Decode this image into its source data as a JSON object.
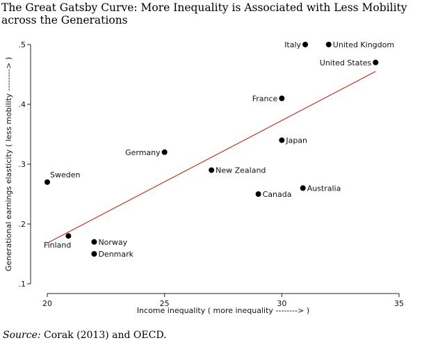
{
  "title": "The Great Gatsby Curve: More Inequality is Associated with Less Mobility across the Generations",
  "source": {
    "prefix": "Source:",
    "text": " Corak (2013) and OECD."
  },
  "chart_data": {
    "type": "scatter",
    "title": "The Great Gatsby Curve: More Inequality is Associated with Less Mobility across the Generations",
    "xlabel": "Income inequality ( more inequality --------> )",
    "ylabel": "Generational earnings elasticity ( less mobility --------> )",
    "xlim": [
      20,
      35
    ],
    "ylim": [
      0.1,
      0.5
    ],
    "xticks": [
      20,
      25,
      30,
      35
    ],
    "yticks": [
      0.1,
      0.2,
      0.3,
      0.4,
      0.5
    ],
    "xtick_labels": [
      "20",
      "25",
      "30",
      "35"
    ],
    "ytick_labels": [
      ".1",
      ".2",
      ".3",
      ".4",
      ".5"
    ],
    "grid": false,
    "points": [
      {
        "label": "Italy",
        "x": 31.0,
        "y": 0.5,
        "label_side": "left"
      },
      {
        "label": "United Kingdom",
        "x": 32.0,
        "y": 0.5,
        "label_side": "right"
      },
      {
        "label": "United States",
        "x": 34.0,
        "y": 0.47,
        "label_side": "left"
      },
      {
        "label": "France",
        "x": 30.0,
        "y": 0.41,
        "label_side": "left"
      },
      {
        "label": "Japan",
        "x": 30.0,
        "y": 0.34,
        "label_side": "right"
      },
      {
        "label": "Germany",
        "x": 25.0,
        "y": 0.32,
        "label_side": "left"
      },
      {
        "label": "New Zealand",
        "x": 27.0,
        "y": 0.29,
        "label_side": "right"
      },
      {
        "label": "Sweden",
        "x": 20.0,
        "y": 0.27,
        "label_side": "above-right"
      },
      {
        "label": "Australia",
        "x": 30.9,
        "y": 0.26,
        "label_side": "right"
      },
      {
        "label": "Canada",
        "x": 29.0,
        "y": 0.25,
        "label_side": "right"
      },
      {
        "label": "Finland",
        "x": 20.9,
        "y": 0.18,
        "label_side": "below-left"
      },
      {
        "label": "Norway",
        "x": 22.0,
        "y": 0.17,
        "label_side": "right"
      },
      {
        "label": "Denmark",
        "x": 22.0,
        "y": 0.15,
        "label_side": "right"
      }
    ],
    "fit_line": {
      "x": [
        20.0,
        34.0
      ],
      "y": [
        0.168,
        0.455
      ],
      "color": "#c0392b"
    }
  }
}
